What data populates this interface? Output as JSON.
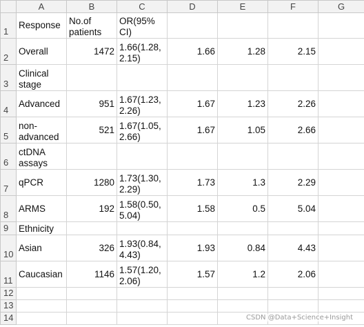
{
  "columns": [
    "A",
    "B",
    "C",
    "D",
    "E",
    "F",
    "G"
  ],
  "rows": [
    {
      "num": "1",
      "cells": [
        "Response",
        "No.of patients",
        "OR(95% CI)",
        "",
        "",
        "",
        ""
      ]
    },
    {
      "num": "2",
      "cells": [
        "Overall",
        "1472",
        "1.66(1.28, 2.15)",
        "1.66",
        "1.28",
        "2.15",
        ""
      ]
    },
    {
      "num": "3",
      "cells": [
        "Clinical stage",
        "",
        "",
        "",
        "",
        "",
        ""
      ]
    },
    {
      "num": "4",
      "cells": [
        "Advanced",
        "951",
        "1.67(1.23, 2.26)",
        "1.67",
        "1.23",
        "2.26",
        ""
      ]
    },
    {
      "num": "5",
      "cells": [
        "non-advanced",
        "521",
        "1.67(1.05, 2.66)",
        "1.67",
        "1.05",
        "2.66",
        ""
      ]
    },
    {
      "num": "6",
      "cells": [
        "ctDNA assays",
        "",
        "",
        "",
        "",
        "",
        ""
      ]
    },
    {
      "num": "7",
      "cells": [
        "qPCR",
        "1280",
        "1.73(1.30, 2.29)",
        "1.73",
        "1.3",
        "2.29",
        ""
      ]
    },
    {
      "num": "8",
      "cells": [
        "ARMS",
        "192",
        "1.58(0.50, 5.04)",
        "1.58",
        "0.5",
        "5.04",
        ""
      ]
    },
    {
      "num": "9",
      "cells": [
        "Ethnicity",
        "",
        "",
        "",
        "",
        "",
        ""
      ]
    },
    {
      "num": "10",
      "cells": [
        "Asian",
        "326",
        "1.93(0.84, 4.43)",
        "1.93",
        "0.84",
        "4.43",
        ""
      ]
    },
    {
      "num": "11",
      "cells": [
        "Caucasian",
        "1146",
        "1.57(1.20, 2.06)",
        "1.57",
        "1.2",
        "2.06",
        ""
      ]
    },
    {
      "num": "12",
      "cells": [
        "",
        "",
        "",
        "",
        "",
        "",
        ""
      ]
    },
    {
      "num": "13",
      "cells": [
        "",
        "",
        "",
        "",
        "",
        "",
        ""
      ]
    },
    {
      "num": "14",
      "cells": [
        "",
        "",
        "",
        "",
        "",
        "",
        ""
      ]
    }
  ],
  "watermark": "CSDN @Data+Science+Insight",
  "colors": {
    "header_bg": "#f2f2f2",
    "gridline": "#d4d4d4",
    "text": "#111111"
  }
}
